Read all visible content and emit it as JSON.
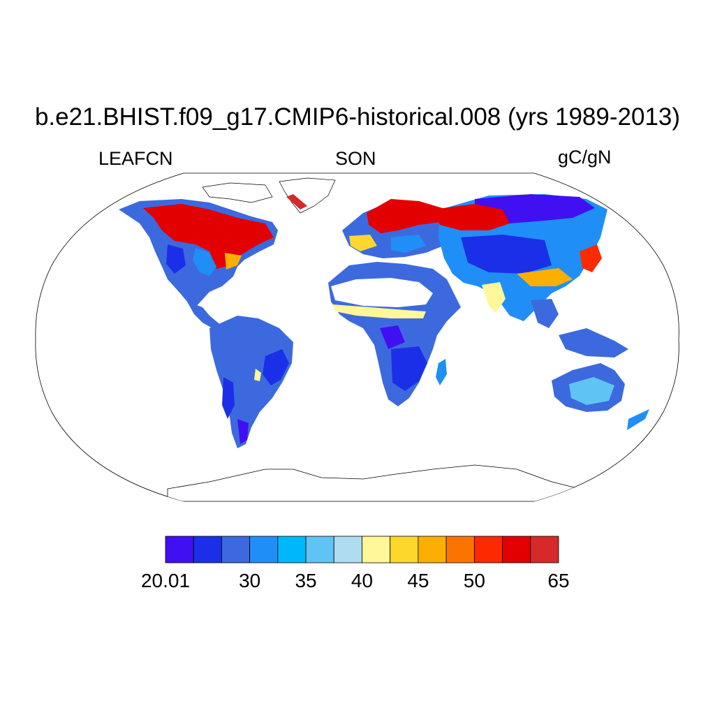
{
  "title": "b.e21.BHIST.f09_g17.CMIP6-historical.008 (yrs 1989-2013)",
  "variable": "LEAFCN",
  "season": "SON",
  "units": "gC/gN",
  "colorbar": {
    "colors": [
      "#4010f2",
      "#1c2fe8",
      "#3c6ade",
      "#1f8ff7",
      "#00b7fb",
      "#5fc4f3",
      "#b0dcf2",
      "#fff799",
      "#fdd72c",
      "#fcaf00",
      "#fc7400",
      "#fb2a00",
      "#e30000",
      "#d42a2a"
    ],
    "tick_labels": [
      "20.01",
      "30",
      "35",
      "40",
      "45",
      "50",
      "65"
    ],
    "tick_boundary_index": [
      0,
      3,
      5,
      7,
      9,
      11,
      14
    ]
  },
  "map": {
    "projection": "Robinson",
    "ocean_color": "#ffffff",
    "coastline_color": "#000000"
  }
}
